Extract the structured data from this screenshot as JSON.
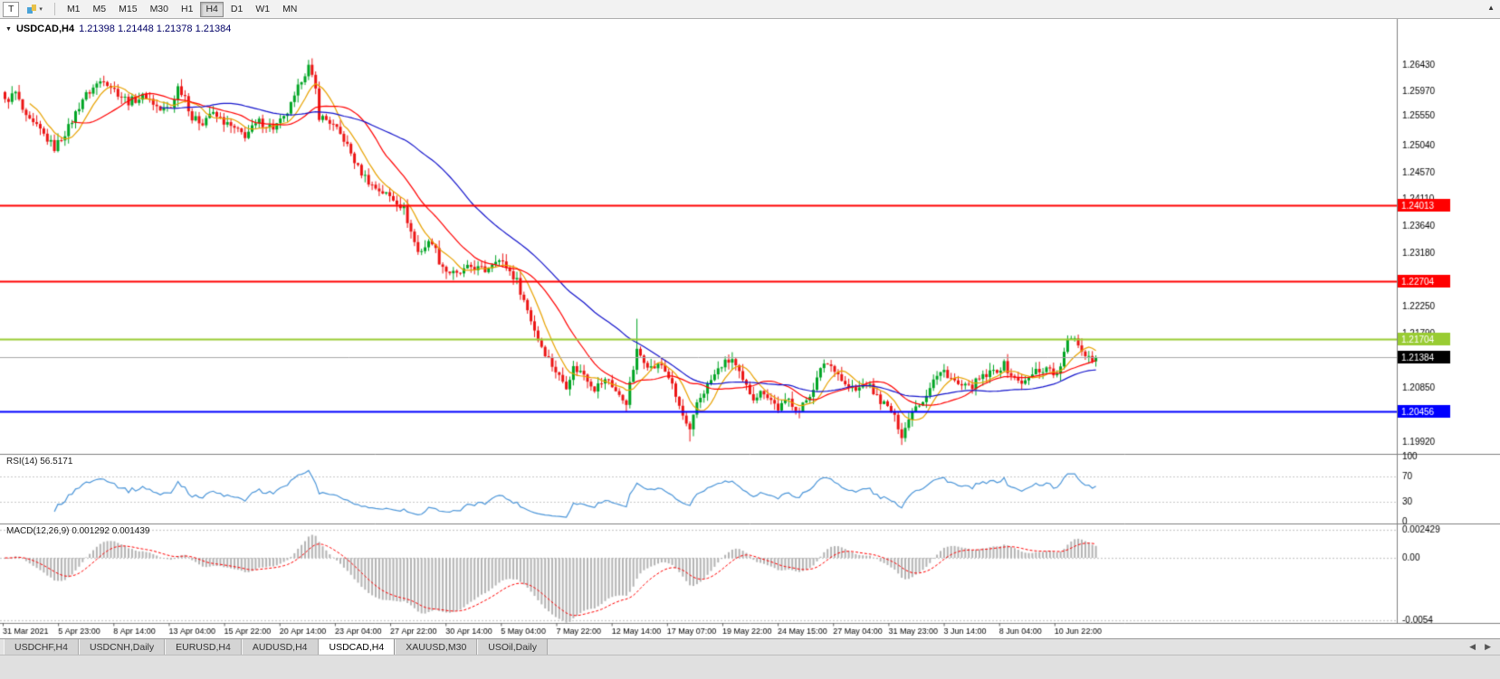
{
  "icons": {
    "symbol_dropdown": "▼",
    "dropdown": "▾",
    "scroll_up": "▲",
    "tab_left": "◀",
    "tab_right": "▶"
  },
  "toolbar": {
    "chart_type_label": "T",
    "timeframes": [
      "M1",
      "M5",
      "M15",
      "M30",
      "H1",
      "H4",
      "D1",
      "W1",
      "MN"
    ],
    "active_timeframe": "H4"
  },
  "chart_header": {
    "symbol": "USDCAD,H4",
    "ohlc": "1.21398 1.21448 1.21378 1.21384"
  },
  "colors": {
    "candle_up": "#00A524",
    "candle_down": "#EC1414",
    "ma_fast": "#E8A200",
    "ma_mid": "#FF0000",
    "ma_slow": "#1414CC",
    "rsi_line": "#4C96D9",
    "macd_hist": "#B4B4B4",
    "macd_signal": "#FF0000",
    "current_price_bg": "#000000"
  },
  "chart_data": {
    "type": "candlestick",
    "symbol": "USDCAD",
    "timeframe": "H4",
    "ohlc_display": {
      "open": 1.21398,
      "high": 1.21448,
      "low": 1.21378,
      "close": 1.21384
    },
    "price_axis_labels": [
      "1.26430",
      "1.25970",
      "1.25550",
      "1.25040",
      "1.24570",
      "1.24110",
      "1.23640",
      "1.23180",
      "1.22250",
      "1.21790",
      "1.20850",
      "1.19920"
    ],
    "hlines": [
      {
        "price": 1.24013,
        "label": "1.24013",
        "color": "#FF0000"
      },
      {
        "price": 1.22704,
        "label": "1.22704",
        "color": "#FF0000"
      },
      {
        "price": 1.21704,
        "label": "1.21704",
        "color": "#99CC33"
      },
      {
        "price": 1.20456,
        "label": "1.20456",
        "color": "#0000FF"
      }
    ],
    "current_price": {
      "value": 1.21384,
      "label": "1.21384"
    },
    "time_labels": [
      "31 Mar 2021",
      "5 Apr 23:00",
      "8 Apr 14:00",
      "13 Apr 04:00",
      "15 Apr 22:00",
      "20 Apr 14:00",
      "23 Apr 04:00",
      "27 Apr 22:00",
      "30 Apr 14:00",
      "5 May 04:00",
      "7 May 22:00",
      "12 May 14:00",
      "17 May 07:00",
      "19 May 22:00",
      "24 May 15:00",
      "27 May 04:00",
      "31 May 23:00",
      "3 Jun 14:00",
      "8 Jun 04:00",
      "10 Jun 22:00"
    ],
    "candles_count": 310,
    "close_waypoints": [
      [
        0,
        1.258
      ],
      [
        3,
        1.2595
      ],
      [
        6,
        1.255
      ],
      [
        10,
        1.253
      ],
      [
        14,
        1.25
      ],
      [
        18,
        1.2535
      ],
      [
        22,
        1.2585
      ],
      [
        26,
        1.261
      ],
      [
        28,
        1.262
      ],
      [
        31,
        1.26
      ],
      [
        35,
        1.258
      ],
      [
        40,
        1.259
      ],
      [
        44,
        1.2565
      ],
      [
        47,
        1.257
      ],
      [
        49,
        1.2605
      ],
      [
        51,
        1.259
      ],
      [
        53,
        1.255
      ],
      [
        56,
        1.2545
      ],
      [
        58,
        1.256
      ],
      [
        61,
        1.255
      ],
      [
        63,
        1.254
      ],
      [
        66,
        1.2528
      ],
      [
        68,
        1.2522
      ],
      [
        72,
        1.2545
      ],
      [
        76,
        1.2535
      ],
      [
        79,
        1.255
      ],
      [
        82,
        1.2585
      ],
      [
        84,
        1.262
      ],
      [
        86,
        1.264
      ],
      [
        88,
        1.26
      ],
      [
        89,
        1.2555
      ],
      [
        92,
        1.2545
      ],
      [
        96,
        1.2515
      ],
      [
        100,
        1.2465
      ],
      [
        104,
        1.2435
      ],
      [
        108,
        1.242
      ],
      [
        111,
        1.2408
      ],
      [
        113,
        1.2395
      ],
      [
        115,
        1.2355
      ],
      [
        117,
        1.232
      ],
      [
        119,
        1.233
      ],
      [
        121,
        1.234
      ],
      [
        123,
        1.2305
      ],
      [
        125,
        1.2288
      ],
      [
        128,
        1.228
      ],
      [
        132,
        1.2295
      ],
      [
        136,
        1.2288
      ],
      [
        139,
        1.231
      ],
      [
        142,
        1.2295
      ],
      [
        145,
        1.227
      ],
      [
        148,
        1.222
      ],
      [
        151,
        1.217
      ],
      [
        154,
        1.2135
      ],
      [
        157,
        1.2105
      ],
      [
        159,
        1.209
      ],
      [
        161,
        1.212
      ],
      [
        164,
        1.211
      ],
      [
        167,
        1.2085
      ],
      [
        169,
        1.2095
      ],
      [
        171,
        1.21
      ],
      [
        174,
        1.207
      ],
      [
        176,
        1.2062
      ],
      [
        177,
        1.209
      ],
      [
        179,
        1.2148
      ],
      [
        181,
        1.2135
      ],
      [
        183,
        1.212
      ],
      [
        186,
        1.2125
      ],
      [
        188,
        1.2105
      ],
      [
        190,
        1.207
      ],
      [
        193,
        1.202
      ],
      [
        194,
        1.2008
      ],
      [
        196,
        1.206
      ],
      [
        199,
        1.209
      ],
      [
        203,
        1.2125
      ],
      [
        206,
        1.2135
      ],
      [
        209,
        1.2095
      ],
      [
        212,
        1.207
      ],
      [
        215,
        1.208
      ],
      [
        219,
        1.205
      ],
      [
        222,
        1.2065
      ],
      [
        225,
        1.2045
      ],
      [
        228,
        1.2075
      ],
      [
        230,
        1.21
      ],
      [
        232,
        1.213
      ],
      [
        235,
        1.212
      ],
      [
        238,
        1.209
      ],
      [
        241,
        1.208
      ],
      [
        244,
        1.2095
      ],
      [
        247,
        1.207
      ],
      [
        251,
        1.2045
      ],
      [
        253,
        1.202
      ],
      [
        254,
        1.2005
      ],
      [
        256,
        1.203
      ],
      [
        257,
        1.205
      ],
      [
        260,
        1.2065
      ],
      [
        263,
        1.21
      ],
      [
        266,
        1.2115
      ],
      [
        270,
        1.209
      ],
      [
        273,
        1.2085
      ],
      [
        276,
        1.21
      ],
      [
        279,
        1.211
      ],
      [
        283,
        1.2125
      ],
      [
        286,
        1.21
      ],
      [
        289,
        1.2095
      ],
      [
        292,
        1.2115
      ],
      [
        296,
        1.212
      ],
      [
        298,
        1.2105
      ],
      [
        301,
        1.2165
      ],
      [
        303,
        1.2175
      ],
      [
        305,
        1.215
      ],
      [
        308,
        1.2136
      ],
      [
        309,
        1.21384
      ]
    ],
    "wick_marks": [
      {
        "i": 86,
        "high": 1.2652
      },
      {
        "i": 179,
        "high": 1.2205
      },
      {
        "i": 194,
        "low": 1.1993
      },
      {
        "i": 254,
        "low": 1.1987
      }
    ],
    "moving_averages": [
      {
        "period": 8,
        "color": "#E8A200"
      },
      {
        "period": 20,
        "color": "#FF0000"
      },
      {
        "period": 45,
        "color": "#1414CC"
      }
    ],
    "rsi": {
      "label": "RSI(14) 56.5171",
      "period": 14,
      "value": 56.5171,
      "levels": [
        100,
        70,
        30,
        0
      ]
    },
    "macd": {
      "label": "MACD(12,26,9) 0.001292 0.001439",
      "fast": 12,
      "slow": 26,
      "signal": 9,
      "macd_value": 0.001292,
      "signal_value": 0.001439,
      "axis_labels": [
        "0.002429",
        "0.00",
        "-0.0054"
      ]
    }
  },
  "tabs": {
    "items": [
      {
        "label": "USDCHF,H4"
      },
      {
        "label": "USDCNH,Daily"
      },
      {
        "label": "EURUSD,H4"
      },
      {
        "label": "AUDUSD,H4"
      },
      {
        "label": "USDCAD,H4"
      },
      {
        "label": "XAUUSD,M30"
      },
      {
        "label": "USOil,Daily"
      }
    ],
    "active_index": 4
  }
}
